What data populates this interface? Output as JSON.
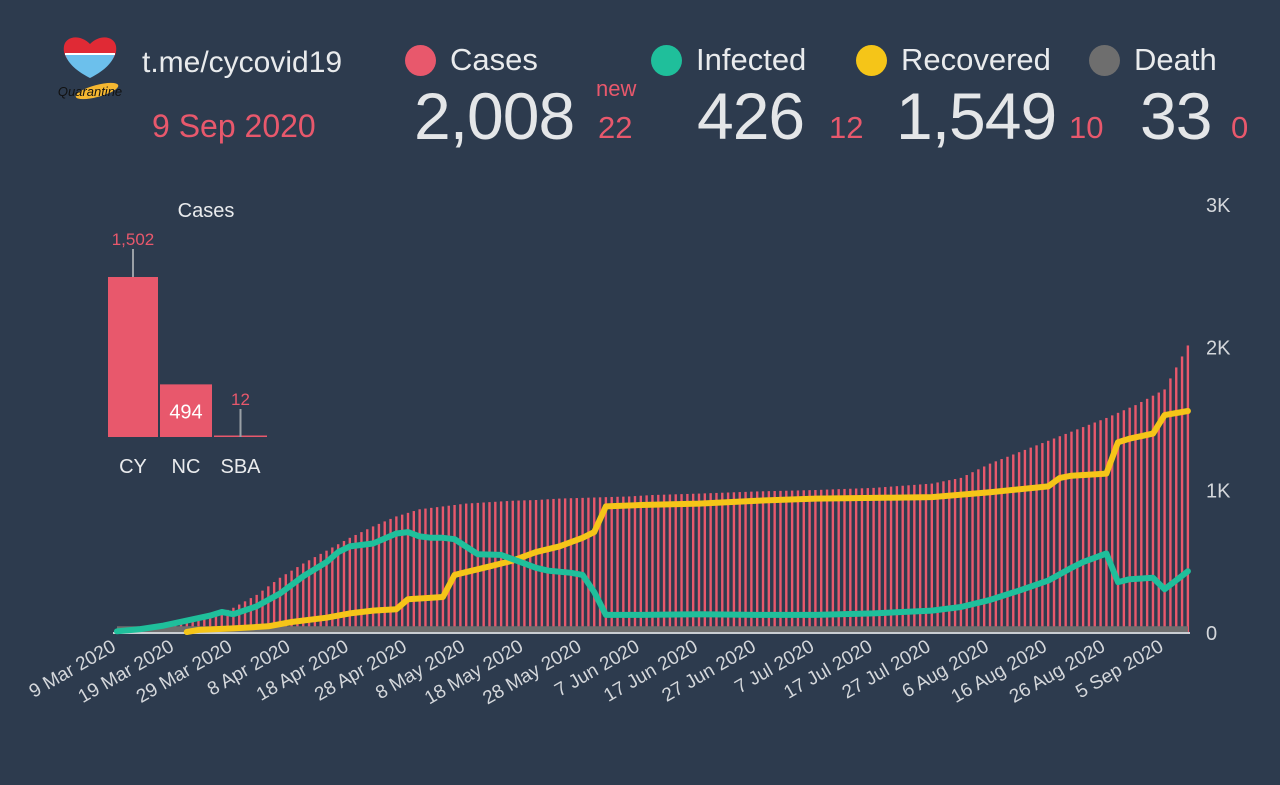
{
  "header": {
    "logo_text": "Quarantine",
    "site": "t.me/cycovid19",
    "date": "9 Sep 2020"
  },
  "stats": {
    "new_label": "new",
    "cases": {
      "label": "Cases",
      "value": "2,008",
      "delta": "22",
      "color": "#e8586c"
    },
    "infected": {
      "label": "Infected",
      "value": "426",
      "delta": "12",
      "color": "#1fbf9b"
    },
    "recovered": {
      "label": "Recovered",
      "value": "1,549",
      "delta": "10",
      "color": "#f5c518"
    },
    "death": {
      "label": "Death",
      "value": "33",
      "delta": "0",
      "color": "#6e6e6e"
    }
  },
  "chart_data": [
    {
      "type": "bar",
      "title": "Cases",
      "categories": [
        "CY",
        "NC",
        "SBA"
      ],
      "values": [
        1502,
        494,
        12
      ],
      "value_labels": [
        "1,502",
        "494",
        "12"
      ],
      "color": "#e8586c"
    },
    {
      "type": "bar+line",
      "title": "",
      "xlabel": "",
      "ylabel": "",
      "ylim": [
        0,
        3000
      ],
      "y_ticks": [
        0,
        1000,
        2000,
        3000
      ],
      "y_tick_labels": [
        "0",
        "1K",
        "2K",
        "3K"
      ],
      "x_start": "2020-03-09",
      "x_end": "2020-09-09",
      "x_tick_labels": [
        "9 Mar 2020",
        "19 Mar 2020",
        "29 Mar 2020",
        "8 Apr 2020",
        "18 Apr 2020",
        "28 Apr 2020",
        "8 May 2020",
        "18 May 2020",
        "28 May 2020",
        "7 Jun 2020",
        "17 Jun 2020",
        "27 Jun 2020",
        "7 Jul 2020",
        "17 Jul 2020",
        "27 Jul 2020",
        "6 Aug 2020",
        "16 Aug 2020",
        "26 Aug 2020",
        "5 Sep 2020"
      ],
      "x_tick_day_offsets": [
        0,
        10,
        20,
        30,
        40,
        50,
        60,
        70,
        80,
        90,
        100,
        110,
        120,
        130,
        140,
        150,
        160,
        170,
        180
      ],
      "grid": false,
      "series": [
        {
          "name": "Cases",
          "kind": "bar",
          "color": "#e8586c",
          "day_offsets": [
            0,
            4,
            8,
            12,
            16,
            20,
            24,
            28,
            32,
            36,
            40,
            44,
            48,
            52,
            56,
            60,
            64,
            68,
            72,
            76,
            80,
            84,
            88,
            92,
            96,
            100,
            110,
            120,
            130,
            140,
            145,
            150,
            155,
            160,
            165,
            170,
            175,
            180,
            184
          ],
          "values": [
            2,
            20,
            35,
            70,
            110,
            170,
            260,
            380,
            480,
            570,
            660,
            740,
            810,
            860,
            880,
            900,
            910,
            920,
            925,
            935,
            940,
            945,
            950,
            960,
            965,
            970,
            985,
            995,
            1010,
            1040,
            1080,
            1180,
            1260,
            1340,
            1420,
            1500,
            1590,
            1700,
            2008
          ]
        },
        {
          "name": "Infected",
          "kind": "line",
          "color": "#1fbf9b",
          "day_offsets": [
            0,
            4,
            8,
            12,
            16,
            18,
            20,
            24,
            28,
            32,
            36,
            38,
            40,
            44,
            46,
            48,
            50,
            52,
            54,
            56,
            58,
            62,
            66,
            70,
            72,
            74,
            78,
            80,
            82,
            84,
            90,
            100,
            110,
            120,
            130,
            140,
            145,
            150,
            155,
            160,
            164,
            166,
            170,
            172,
            174,
            178,
            180,
            184
          ],
          "values": [
            5,
            20,
            45,
            80,
            115,
            140,
            125,
            180,
            270,
            390,
            490,
            560,
            600,
            620,
            655,
            690,
            700,
            670,
            660,
            660,
            650,
            545,
            540,
            480,
            450,
            430,
            415,
            400,
            280,
            120,
            120,
            125,
            120,
            120,
            130,
            150,
            175,
            225,
            290,
            360,
            450,
            490,
            550,
            350,
            370,
            380,
            300,
            426
          ]
        },
        {
          "name": "Recovered",
          "kind": "line",
          "color": "#f5c518",
          "day_offsets": [
            12,
            14,
            20,
            26,
            30,
            36,
            40,
            44,
            48,
            50,
            52,
            54,
            56,
            58,
            60,
            64,
            68,
            72,
            76,
            80,
            82,
            84,
            90,
            100,
            110,
            120,
            130,
            140,
            150,
            160,
            162,
            164,
            170,
            172,
            174,
            178,
            180,
            184
          ],
          "values": [
            0,
            15,
            25,
            40,
            70,
            100,
            130,
            150,
            160,
            230,
            235,
            240,
            245,
            400,
            420,
            460,
            500,
            560,
            600,
            660,
            700,
            880,
            890,
            900,
            920,
            935,
            940,
            945,
            980,
            1020,
            1080,
            1095,
            1110,
            1330,
            1355,
            1390,
            1520,
            1549
          ]
        },
        {
          "name": "Death",
          "kind": "area",
          "color": "#6e6e6e",
          "day_offsets": [
            0,
            12,
            20,
            40,
            60,
            184
          ],
          "values": [
            0,
            0,
            10,
            15,
            20,
            33
          ]
        }
      ]
    }
  ]
}
